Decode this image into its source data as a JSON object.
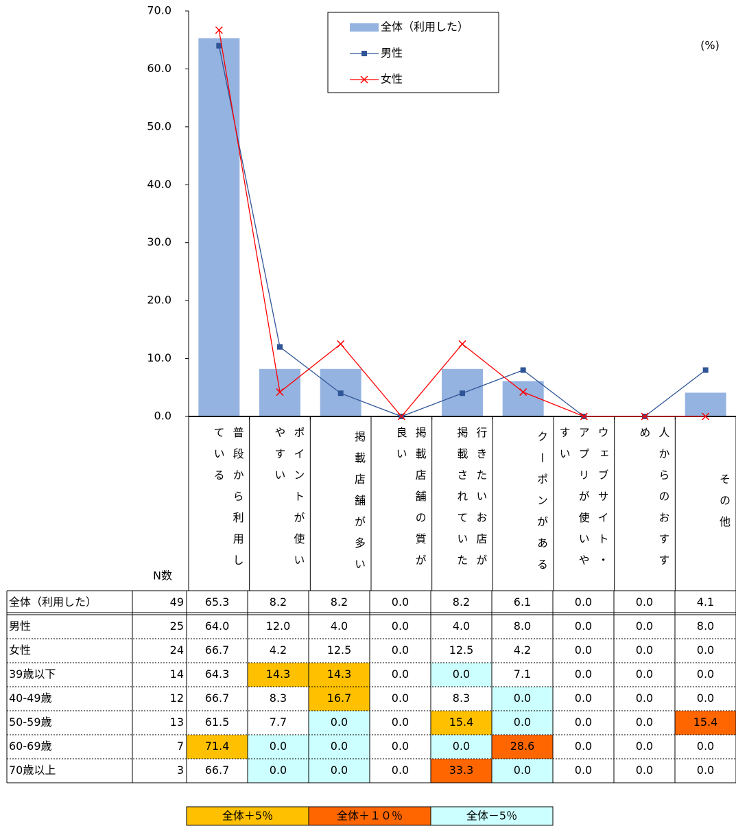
{
  "chart_data": {
    "type": "bar",
    "unit_note": "(%)",
    "categories": [
      "普段から利用している",
      "ポイントが使いやすい",
      "掲載店舗が多い",
      "掲載店舗の質が良い",
      "行きたいお店が掲載されていた",
      "クーポンがある",
      "ウェブサイト・アプリが使いやすい",
      "人からのおすすめ",
      "その他"
    ],
    "series": [
      {
        "name": "全体（利用した）",
        "type": "bar",
        "color": "#95b3e0",
        "values": [
          65.3,
          8.2,
          8.2,
          0,
          8.2,
          6.1,
          0,
          0,
          4.1
        ]
      },
      {
        "name": "男性",
        "type": "line",
        "marker": "square",
        "color": "#2f5597",
        "values": [
          64.0,
          12.0,
          4.0,
          0,
          4.0,
          8.0,
          0,
          0,
          8.0
        ]
      },
      {
        "name": "女性",
        "type": "line",
        "marker": "x",
        "color": "#ff0000",
        "values": [
          66.7,
          4.2,
          12.5,
          0,
          12.5,
          4.2,
          0,
          0,
          0
        ]
      }
    ],
    "ylim": [
      0,
      70
    ],
    "yticks": [
      {
        "value": 0,
        "label": "0.0"
      },
      {
        "value": 10,
        "label": "10.0"
      },
      {
        "value": 20,
        "label": "20.0"
      },
      {
        "value": 30,
        "label": "30.0"
      },
      {
        "value": 40,
        "label": "40.0"
      },
      {
        "value": 50,
        "label": "50.0"
      },
      {
        "value": 60,
        "label": "60.0"
      },
      {
        "value": 70,
        "label": "70.0"
      }
    ]
  },
  "table": {
    "header": "N数",
    "rows": [
      {
        "label": "全体（利用した）",
        "n": "49",
        "values": [
          "65.3",
          "8.2",
          "8.2",
          "0.0",
          "8.2",
          "6.1",
          "0.0",
          "0.0",
          "4.1"
        ],
        "colors": [
          null,
          null,
          null,
          null,
          null,
          null,
          null,
          null,
          null
        ]
      },
      {
        "label": "男性",
        "n": "25",
        "values": [
          "64.0",
          "12.0",
          "4.0",
          "0.0",
          "4.0",
          "8.0",
          "0.0",
          "0.0",
          "8.0"
        ],
        "colors": [
          null,
          null,
          null,
          null,
          null,
          null,
          null,
          null,
          null
        ]
      },
      {
        "label": "女性",
        "n": "24",
        "values": [
          "66.7",
          "4.2",
          "12.5",
          "0.0",
          "12.5",
          "4.2",
          "0.0",
          "0.0",
          "0.0"
        ],
        "colors": [
          null,
          null,
          null,
          null,
          null,
          null,
          null,
          null,
          null
        ]
      },
      {
        "label": "39歳以下",
        "n": "14",
        "values": [
          "64.3",
          "14.3",
          "14.3",
          "0.0",
          "0.0",
          "7.1",
          "0.0",
          "0.0",
          "0.0"
        ],
        "colors": [
          null,
          "#ffc000",
          "#ffc000",
          null,
          "#ccffff",
          null,
          null,
          null,
          null
        ]
      },
      {
        "label": "40-49歳",
        "n": "12",
        "values": [
          "66.7",
          "8.3",
          "16.7",
          "0.0",
          "8.3",
          "0.0",
          "0.0",
          "0.0",
          "0.0"
        ],
        "colors": [
          null,
          null,
          "#ffc000",
          null,
          null,
          "#ccffff",
          null,
          null,
          null
        ]
      },
      {
        "label": "50-59歳",
        "n": "13",
        "values": [
          "61.5",
          "7.7",
          "0.0",
          "0.0",
          "15.4",
          "0.0",
          "0.0",
          "0.0",
          "15.4"
        ],
        "colors": [
          null,
          null,
          "#ccffff",
          null,
          "#ffc000",
          "#ccffff",
          null,
          null,
          "#ff6600"
        ]
      },
      {
        "label": "60-69歳",
        "n": "7",
        "values": [
          "71.4",
          "0.0",
          "0.0",
          "0.0",
          "0.0",
          "28.6",
          "0.0",
          "0.0",
          "0.0"
        ],
        "colors": [
          "#ffc000",
          "#ccffff",
          "#ccffff",
          null,
          "#ccffff",
          "#ff6600",
          null,
          null,
          null
        ]
      },
      {
        "label": "70歳以上",
        "n": "3",
        "values": [
          "66.7",
          "0.0",
          "0.0",
          "0.0",
          "33.3",
          "0.0",
          "0.0",
          "0.0",
          "0.0"
        ],
        "colors": [
          null,
          "#ccffff",
          "#ccffff",
          null,
          "#ff6600",
          "#ccffff",
          null,
          null,
          null
        ]
      }
    ],
    "key": [
      {
        "label": "全体＋5％",
        "color": "#ffc000"
      },
      {
        "label": "全体＋１０％",
        "color": "#ff6600"
      },
      {
        "label": "全体－5％",
        "color": "#ccffff"
      }
    ]
  }
}
